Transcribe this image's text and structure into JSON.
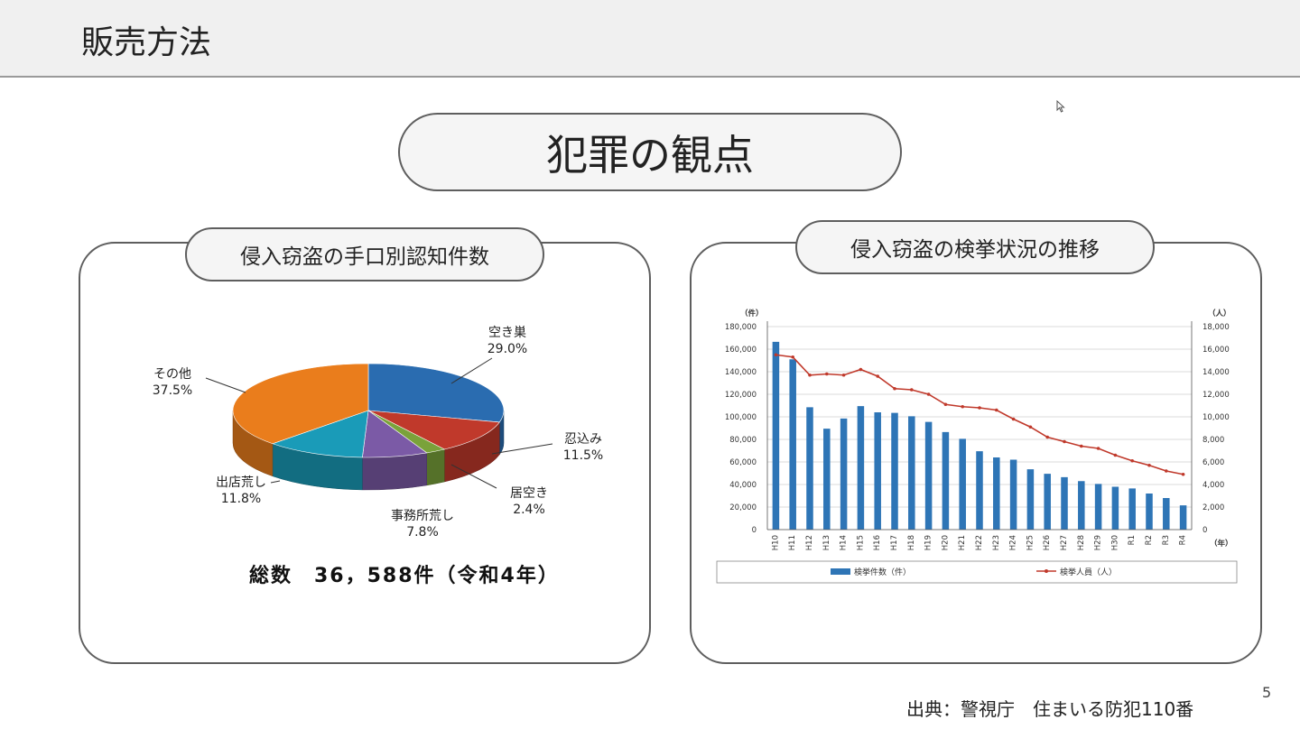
{
  "slide": {
    "title": "販売方法",
    "main_heading": "犯罪の観点",
    "page_number": "5",
    "source": "出典：警視庁　住まいる防犯110番"
  },
  "left_panel": {
    "heading": "侵入窃盗の手口別認知件数",
    "total": "総数　36，588件（令和4年）"
  },
  "right_panel": {
    "heading": "侵入窃盗の検挙状況の推移"
  },
  "colors": {
    "bar": "#2e75b6",
    "line": "#c0392b",
    "slice_akisu": "#2a6cb0",
    "slice_shinobi": "#c0392b",
    "slice_igomi": "#7aa23a",
    "slice_jimusho": "#7b5aa6",
    "slice_shiten": "#1a9bb8",
    "slice_sonota": "#ea7d1c"
  },
  "chart_data": [
    {
      "type": "pie",
      "title": "侵入窃盗の手口別認知件数",
      "slices": [
        {
          "name": "空き巣",
          "label": "29.0%",
          "value": 29.0
        },
        {
          "name": "忍込み",
          "label": "11.5%",
          "value": 11.5
        },
        {
          "name": "居空き",
          "label": "2.4%",
          "value": 2.4
        },
        {
          "name": "事務所荒し",
          "label": "7.8%",
          "value": 7.8
        },
        {
          "name": "出店荒し",
          "label": "11.8%",
          "value": 11.8
        },
        {
          "name": "その他",
          "label": "37.5%",
          "value": 37.5
        }
      ]
    },
    {
      "type": "bar+line",
      "title": "侵入窃盗の検挙状況の推移",
      "x": [
        "H10",
        "H11",
        "H12",
        "H13",
        "H14",
        "H15",
        "H16",
        "H17",
        "H18",
        "H19",
        "H20",
        "H21",
        "H22",
        "H23",
        "H24",
        "H25",
        "H26",
        "H27",
        "H28",
        "H29",
        "H30",
        "R1",
        "R2",
        "R3",
        "R4"
      ],
      "series": [
        {
          "name": "検挙件数（件）",
          "axis": "left",
          "kind": "bar",
          "values": [
            166500,
            151000,
            108500,
            89500,
            98500,
            109500,
            104000,
            103500,
            100500,
            95500,
            86500,
            80500,
            69500,
            64000,
            62000,
            53500,
            49500,
            46500,
            43000,
            40500,
            38000,
            36500,
            32000,
            28000,
            21500
          ]
        },
        {
          "name": "検挙人員（人）",
          "axis": "right",
          "kind": "line",
          "values": [
            15500,
            15300,
            13700,
            13800,
            13700,
            14200,
            13600,
            12500,
            12400,
            12000,
            11100,
            10900,
            10800,
            10600,
            9800,
            9100,
            8200,
            7800,
            7400,
            7200,
            6600,
            6100,
            5700,
            5200,
            4900
          ]
        }
      ],
      "y_left": {
        "unit": "（件）",
        "min": 0,
        "max": 180000,
        "ticks": [
          "0",
          "20,000",
          "40,000",
          "60,000",
          "80,000",
          "100,000",
          "120,000",
          "140,000",
          "160,000",
          "180,000"
        ]
      },
      "y_right": {
        "unit": "（人）",
        "min": 0,
        "max": 18000,
        "ticks": [
          "0",
          "2,000",
          "4,000",
          "6,000",
          "8,000",
          "10,000",
          "12,000",
          "14,000",
          "16,000",
          "18,000"
        ]
      },
      "x_unit": "（年）",
      "grid": true,
      "legend": "bottom"
    }
  ]
}
